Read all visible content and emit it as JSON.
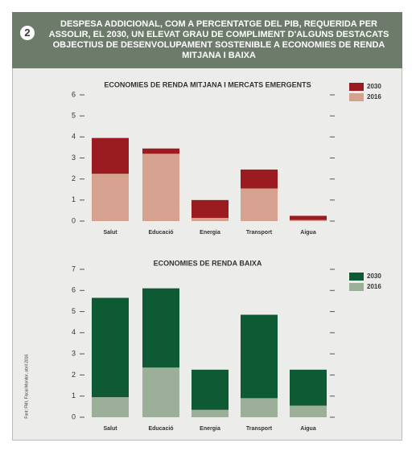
{
  "header": {
    "badge": "2",
    "title": "DESPESA ADDICIONAL, COM A PERCENTATGE DEL PIB, REQUERIDA PER ASSOLIR, EL 2030, UN ELEVAT GRAU DE COMPLIMENT D'ALGUNS DESTACATS OBJECTIUS DE DESENVOLUPAMENT SOSTENIBLE A ECONOMIES DE RENDA MITJANA I BAIXA"
  },
  "source": "Font: FMI, Fiscal Monitor, abril 2016.",
  "chart_data": [
    {
      "type": "bar",
      "stacked": true,
      "title": "ECONOMIES DE RENDA MITJANA I MERCATS EMERGENTS",
      "categories": [
        "Salut",
        "Educació",
        "Energia",
        "Transport",
        "Aigua"
      ],
      "series": [
        {
          "name": "2016",
          "color": "#d4a28e",
          "values": [
            2.25,
            3.2,
            0.15,
            1.55,
            0.05
          ]
        },
        {
          "name": "2030",
          "color": "#9b1c20",
          "values": [
            1.7,
            0.25,
            0.85,
            0.9,
            0.2
          ]
        }
      ],
      "ylim": [
        0,
        6
      ],
      "yticks": [
        0,
        1,
        2,
        3,
        4,
        5,
        6
      ]
    },
    {
      "type": "bar",
      "stacked": true,
      "title": "ECONOMIES DE RENDA BAIXA",
      "categories": [
        "Salut",
        "Educació",
        "Energia",
        "Transport",
        "Aigua"
      ],
      "series": [
        {
          "name": "2016",
          "color": "#9caf98",
          "values": [
            0.95,
            2.35,
            0.35,
            0.9,
            0.55
          ]
        },
        {
          "name": "2030",
          "color": "#0e5a35",
          "values": [
            4.7,
            3.75,
            1.9,
            3.95,
            1.7
          ]
        }
      ],
      "ylim": [
        0,
        7
      ],
      "yticks": [
        0,
        1,
        2,
        3,
        4,
        5,
        6,
        7
      ]
    }
  ]
}
